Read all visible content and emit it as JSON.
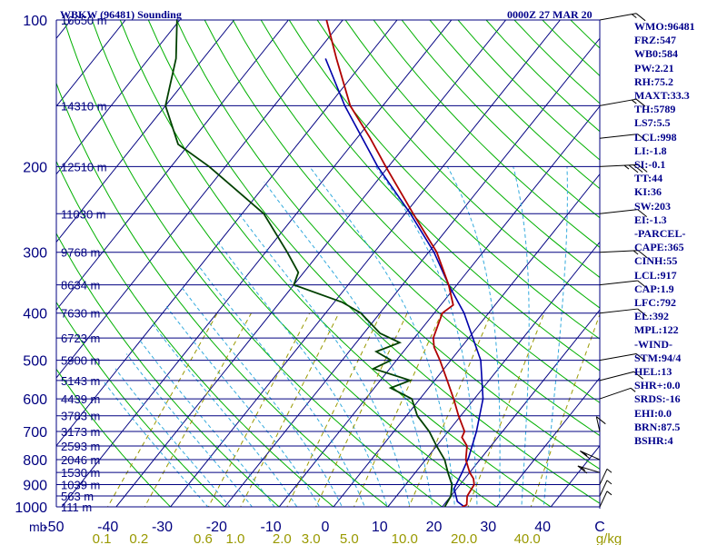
{
  "header": {
    "station": "WBKW (96481) Sounding",
    "time": "0000Z 27 MAR 20"
  },
  "indices": [
    "WMO:96481",
    "FRZ:547",
    "WB0:584",
    "PW:2.21",
    "RH:75.2",
    "MAXT:33.3",
    "TH:5789",
    "LS7:5.5",
    "LCL:998",
    "LI:-1.8",
    "SI:-0.1",
    "TT:44",
    "KI:36",
    "SW:203",
    "EI:-1.3",
    "-PARCEL-",
    "CAPE:365",
    "CINH:55",
    "LCL:917",
    "CAP:1.9",
    "LFC:792",
    "EL:392",
    "MPL:122",
    "-WIND-",
    "STM:94/4",
    "HEL:13",
    "SHR+:0.0",
    "SRDS:-16",
    "EHI:0.0",
    "BRN:87.5",
    "BSHR:4"
  ],
  "chart_data": {
    "type": "skew-t",
    "pressure_unit_label": "mb",
    "y_axis": {
      "scale": "log",
      "range": [
        1000,
        100
      ],
      "tick_labels": [
        "100",
        "200",
        "300",
        "400",
        "500",
        "600",
        "700",
        "800",
        "900",
        "1000"
      ]
    },
    "x_axis": {
      "unit": "C",
      "range": [
        -50,
        50
      ],
      "tick_labels": [
        "-50",
        "-40",
        "-30",
        "-20",
        "-10",
        "0",
        "10",
        "20",
        "30",
        "40"
      ]
    },
    "mixing_ratio_axis": {
      "unit": "g/kg",
      "labels": [
        "0.1",
        "0.2",
        "0.6",
        "1.0",
        "2.0",
        "3.0",
        "5.0",
        "10.0",
        "20.0",
        "40.0"
      ],
      "values": [
        0.1,
        0.2,
        0.6,
        1.0,
        2.0,
        3.0,
        5.0,
        10.0,
        20.0,
        40.0
      ]
    },
    "height_levels": [
      {
        "p": 100,
        "label": "16650 m"
      },
      {
        "p": 150,
        "label": "14310 m"
      },
      {
        "p": 200,
        "label": "12510 m"
      },
      {
        "p": 250,
        "label": "11030 m"
      },
      {
        "p": 300,
        "label": "9768 m"
      },
      {
        "p": 350,
        "label": "8634 m"
      },
      {
        "p": 400,
        "label": "7630 m"
      },
      {
        "p": 450,
        "label": "6723 m"
      },
      {
        "p": 500,
        "label": "5900 m"
      },
      {
        "p": 550,
        "label": "5143 m"
      },
      {
        "p": 600,
        "label": "4439 m"
      },
      {
        "p": 650,
        "label": "3783 m"
      },
      {
        "p": 700,
        "label": "3173 m"
      },
      {
        "p": 750,
        "label": "2593 m"
      },
      {
        "p": 800,
        "label": "2046 m"
      },
      {
        "p": 850,
        "label": "1530 m"
      },
      {
        "p": 900,
        "label": "1039 m"
      },
      {
        "p": 950,
        "label": "563 m"
      },
      {
        "p": 1000,
        "label": "111 m"
      }
    ],
    "temperature": [
      {
        "p": 1005,
        "t": 23.5
      },
      {
        "p": 990,
        "t": 24.2
      },
      {
        "p": 950,
        "t": 23.0
      },
      {
        "p": 900,
        "t": 22.6
      },
      {
        "p": 875,
        "t": 21.6
      },
      {
        "p": 850,
        "t": 20.0
      },
      {
        "p": 800,
        "t": 17.4
      },
      {
        "p": 750,
        "t": 15.6
      },
      {
        "p": 720,
        "t": 13.4
      },
      {
        "p": 700,
        "t": 13.0
      },
      {
        "p": 650,
        "t": 9.6
      },
      {
        "p": 600,
        "t": 6.2
      },
      {
        "p": 550,
        "t": 2.3
      },
      {
        "p": 500,
        "t": -2.0
      },
      {
        "p": 470,
        "t": -5.0
      },
      {
        "p": 450,
        "t": -6.5
      },
      {
        "p": 400,
        "t": -8.5
      },
      {
        "p": 385,
        "t": -7.7
      },
      {
        "p": 350,
        "t": -11.5
      },
      {
        "p": 300,
        "t": -18.5
      },
      {
        "p": 250,
        "t": -28.5
      },
      {
        "p": 200,
        "t": -40.5
      },
      {
        "p": 175,
        "t": -47.5
      },
      {
        "p": 150,
        "t": -56.0
      },
      {
        "p": 120,
        "t": -65.5
      },
      {
        "p": 100,
        "t": -73.0
      }
    ],
    "dewpoint": [
      {
        "p": 1005,
        "t": 20.5
      },
      {
        "p": 950,
        "t": 20.0
      },
      {
        "p": 900,
        "t": 18.5
      },
      {
        "p": 850,
        "t": 16.0
      },
      {
        "p": 800,
        "t": 13.5
      },
      {
        "p": 750,
        "t": 10.0
      },
      {
        "p": 700,
        "t": 6.5
      },
      {
        "p": 650,
        "t": 2.0
      },
      {
        "p": 600,
        "t": -1.5
      },
      {
        "p": 570,
        "t": -7.0
      },
      {
        "p": 550,
        "t": -4.5
      },
      {
        "p": 520,
        "t": -13.0
      },
      {
        "p": 500,
        "t": -11.0
      },
      {
        "p": 480,
        "t": -15.0
      },
      {
        "p": 460,
        "t": -12.0
      },
      {
        "p": 440,
        "t": -17.0
      },
      {
        "p": 400,
        "t": -23.5
      },
      {
        "p": 380,
        "t": -28.5
      },
      {
        "p": 350,
        "t": -40.0
      },
      {
        "p": 330,
        "t": -41.0
      },
      {
        "p": 300,
        "t": -46.0
      },
      {
        "p": 250,
        "t": -56.0
      },
      {
        "p": 200,
        "t": -73.0
      },
      {
        "p": 180,
        "t": -82.0
      },
      {
        "p": 150,
        "t": -90.0
      },
      {
        "p": 120,
        "t": -95.0
      },
      {
        "p": 100,
        "t": -100.5
      }
    ],
    "parcel": [
      {
        "p": 1005,
        "t": 24.5
      },
      {
        "p": 975,
        "t": 22.0
      },
      {
        "p": 917,
        "t": 19.5
      },
      {
        "p": 850,
        "t": 18.6
      },
      {
        "p": 792,
        "t": 17.6
      },
      {
        "p": 700,
        "t": 15.2
      },
      {
        "p": 600,
        "t": 11.6
      },
      {
        "p": 500,
        "t": 5.5
      },
      {
        "p": 400,
        "t": -4.5
      },
      {
        "p": 350,
        "t": -11.5
      },
      {
        "p": 300,
        "t": -19.0
      },
      {
        "p": 250,
        "t": -29.0
      },
      {
        "p": 200,
        "t": -42.0
      },
      {
        "p": 150,
        "t": -57.0
      },
      {
        "p": 120,
        "t": -67.5
      }
    ],
    "wind_barbs": [
      {
        "p": 100,
        "dir": 70,
        "spd": 15
      },
      {
        "p": 150,
        "dir": 70,
        "spd": 15
      },
      {
        "p": 175,
        "dir": 80,
        "spd": 10
      },
      {
        "p": 200,
        "dir": 90,
        "spd": 35
      },
      {
        "p": 250,
        "dir": 80,
        "spd": 10
      },
      {
        "p": 300,
        "dir": 90,
        "spd": 15
      },
      {
        "p": 350,
        "dir": 100,
        "spd": 10
      },
      {
        "p": 400,
        "dir": 80,
        "spd": 10
      },
      {
        "p": 500,
        "dir": 110,
        "spd": 10
      },
      {
        "p": 550,
        "dir": 120,
        "spd": 10
      },
      {
        "p": 600,
        "dir": 130,
        "spd": 5
      },
      {
        "p": 700,
        "dir": 200,
        "spd": 10
      },
      {
        "p": 800,
        "dir": 240,
        "spd": 15
      },
      {
        "p": 850,
        "dir": 250,
        "spd": 15
      },
      {
        "p": 900,
        "dir": 180,
        "spd": 5
      },
      {
        "p": 950,
        "dir": 180,
        "spd": 5
      },
      {
        "p": 1000,
        "dir": 180,
        "spd": 5
      }
    ],
    "colors": {
      "background": "#ffffff",
      "frame": "#000080",
      "isobar": "#000080",
      "isotherm": "#000080",
      "dry_adiabat": "#00b000",
      "moist_adiabat": "#33aadd",
      "mixing_ratio": "#999900",
      "temperature": "#b00000",
      "dewpoint": "#004000",
      "parcel": "#0000aa",
      "axis_text": "#000080",
      "mixing_text": "#999900"
    },
    "grid": true
  }
}
